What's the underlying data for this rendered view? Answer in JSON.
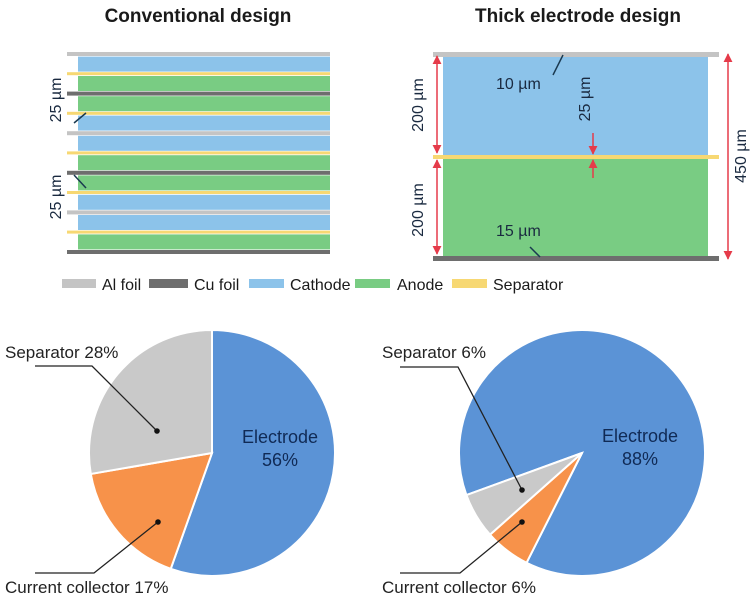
{
  "titles": {
    "conventional": "Conventional design",
    "thick": "Thick electrode design"
  },
  "colors": {
    "al_foil": "#c4c4c4",
    "cu_foil": "#6e6e6e",
    "cathode": "#8cc3ea",
    "anode": "#79cc83",
    "separator": "#f7d873",
    "electrode_pie": "#5b93d6",
    "collector_pie": "#f7924a",
    "separator_pie": "#c9c9c9",
    "dimension_arrow": "#e53b4a"
  },
  "conventional_stack": [
    "al",
    "cathode",
    "sep",
    "anode",
    "cu",
    "anode",
    "sep",
    "cathode",
    "al",
    "cathode",
    "sep",
    "anode",
    "cu",
    "anode",
    "sep",
    "cathode",
    "al",
    "cathode",
    "sep",
    "anode",
    "cu"
  ],
  "conventional_annotations": [
    "25 µm",
    "25 µm"
  ],
  "thick_annotations": {
    "al_thickness": "10 µm",
    "cu_thickness": "15 µm",
    "cathode_thickness": "200 µm",
    "anode_thickness": "200 µm",
    "separator_thickness": "25 µm",
    "total_thickness": "450 µm"
  },
  "legend": [
    {
      "key": "al_foil",
      "label": "Al foil"
    },
    {
      "key": "cu_foil",
      "label": "Cu foil"
    },
    {
      "key": "cathode",
      "label": "Cathode"
    },
    {
      "key": "anode",
      "label": "Anode"
    },
    {
      "key": "separator",
      "label": "Separator"
    }
  ],
  "pies": [
    {
      "name": "conventional",
      "slices": [
        {
          "label": "Electrode",
          "value": 56,
          "text": "56%"
        },
        {
          "label": "Current collector",
          "value": 17,
          "text": "Current collector 17%"
        },
        {
          "label": "Separator",
          "value": 28,
          "text": "Separator 28%"
        }
      ]
    },
    {
      "name": "thick",
      "slices": [
        {
          "label": "Electrode",
          "value": 88,
          "text": "88%"
        },
        {
          "label": "Current collector",
          "value": 6,
          "text": "Current collector 6%"
        },
        {
          "label": "Separator",
          "value": 6,
          "text": "Separator 6%"
        }
      ]
    }
  ]
}
